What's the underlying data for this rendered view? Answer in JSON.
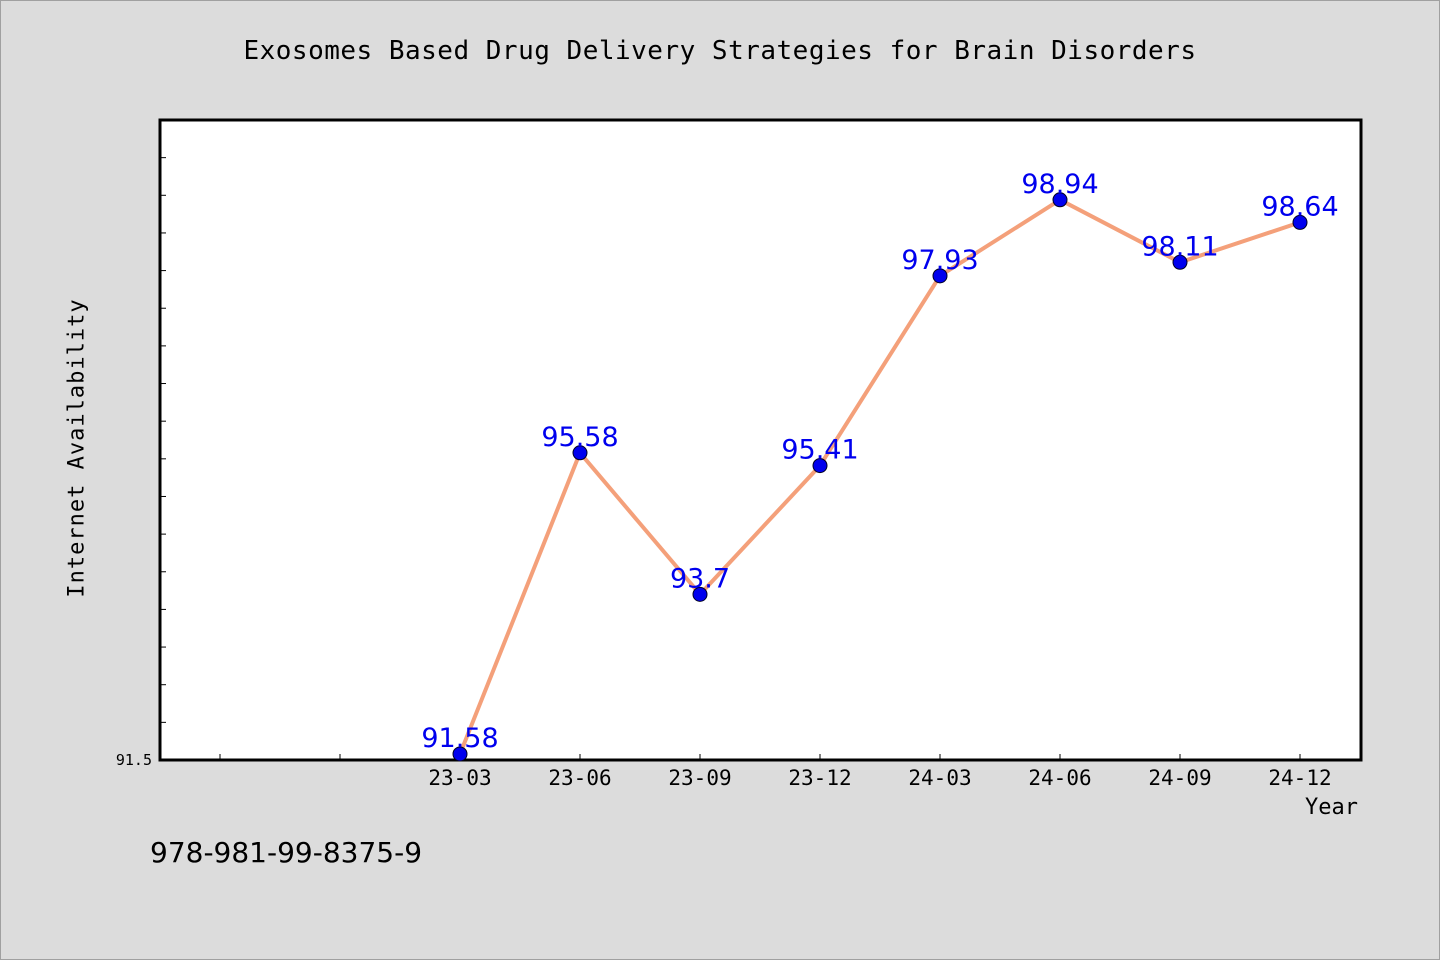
{
  "chart_data": {
    "type": "line",
    "title": "Exosomes Based Drug Delivery Strategies for Brain Disorders",
    "xlabel": "Year",
    "ylabel": "Internet Availability",
    "categories": [
      "23-03",
      "23-06",
      "23-09",
      "23-12",
      "24-03",
      "24-06",
      "24-09",
      "24-12"
    ],
    "series": [
      {
        "values": [
          91.58,
          95.58,
          93.7,
          95.41,
          97.93,
          98.94,
          98.11,
          98.64
        ]
      }
    ],
    "data_labels": [
      "91.58",
      "95.58",
      "93.7",
      "95.41",
      "97.93",
      "98.94",
      "98.11",
      "98.64"
    ],
    "ytick_label": "91.5",
    "ylim": [
      91.5,
      100
    ],
    "grid": false,
    "legend": "none",
    "colors": {
      "line": "#f4a07a",
      "marker": "#0000ee",
      "label": "#0000ee",
      "background": "#dcdcdc",
      "plot_bg": "#ffffff"
    }
  },
  "footer": {
    "isbn": "978-981-99-8375-9"
  }
}
